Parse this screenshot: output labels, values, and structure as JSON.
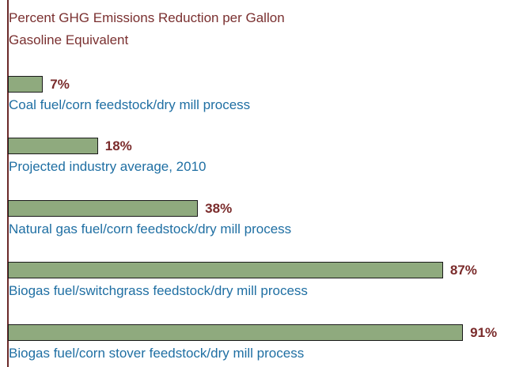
{
  "chart_data": {
    "type": "hbar",
    "title": "Percent GHG Emissions Reduction per Gallon Gasoline Equivalent",
    "categories": [
      "Coal fuel/corn feedstock/dry mill process",
      "Projected industry average, 2010",
      "Natural gas fuel/corn feedstock/dry mill process",
      "Biogas fuel/switchgrass feedstock/dry mill process",
      "Biogas fuel/corn stover feedstock/dry mill process"
    ],
    "values": [
      7,
      18,
      38,
      87,
      91
    ],
    "value_labels": [
      "7%",
      "18%",
      "38%",
      "87%",
      "91%"
    ],
    "color": "#8faa7e",
    "xlim": [
      0,
      100
    ]
  }
}
